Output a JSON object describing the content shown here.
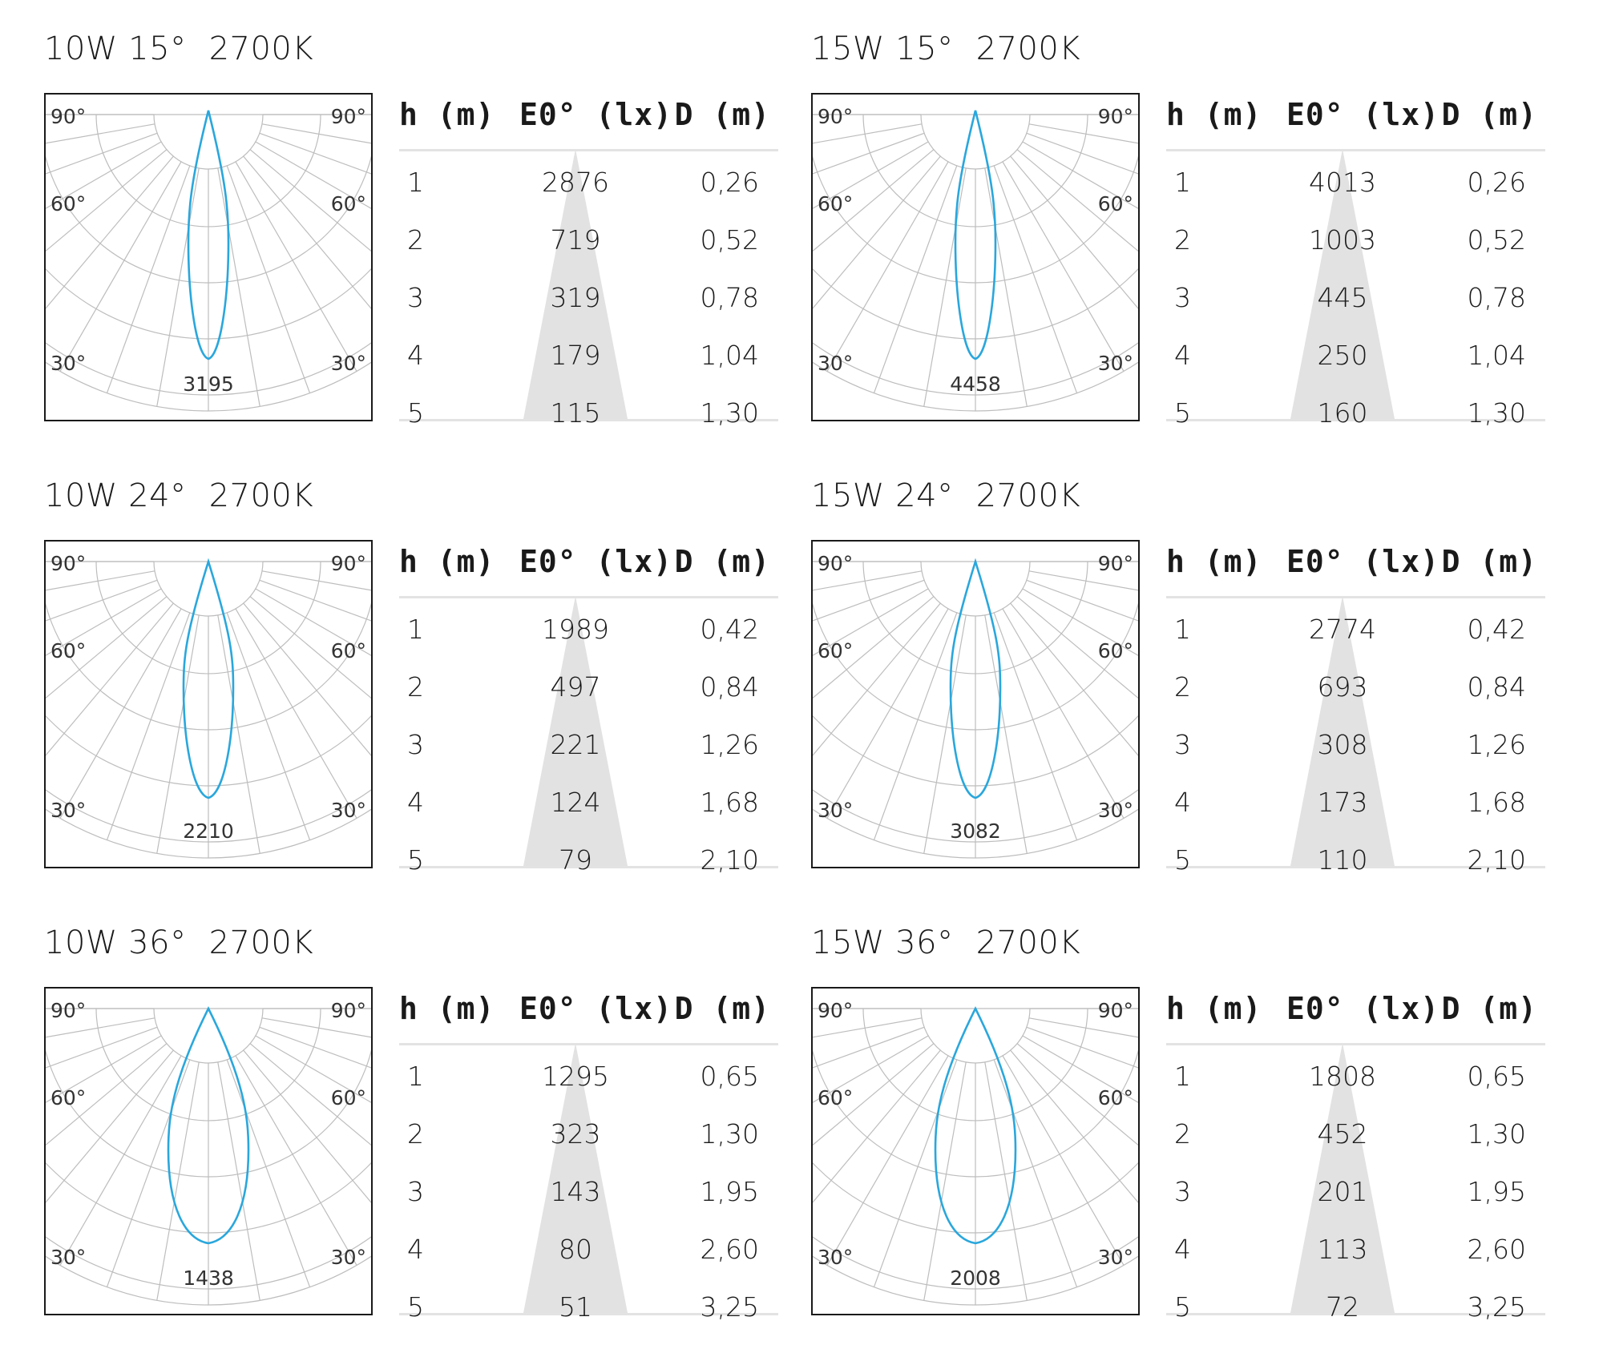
{
  "chart_data": [
    {
      "type": "table",
      "title": "10W 15°",
      "cct": "2700K",
      "peak": "3195",
      "beam": 15,
      "headers": [
        "h (m)",
        "E0° (lx)",
        "D (m)"
      ],
      "rows": [
        [
          "1",
          "2876",
          "0,26"
        ],
        [
          "2",
          "719",
          "0,52"
        ],
        [
          "3",
          "319",
          "0,78"
        ],
        [
          "4",
          "179",
          "1,04"
        ],
        [
          "5",
          "115",
          "1,30"
        ]
      ],
      "angle_labels": [
        "90°",
        "60°",
        "30°"
      ]
    },
    {
      "type": "table",
      "title": "15W 15°",
      "cct": "2700K",
      "peak": "4458",
      "beam": 15,
      "headers": [
        "h (m)",
        "E0° (lx)",
        "D (m)"
      ],
      "rows": [
        [
          "1",
          "4013",
          "0,26"
        ],
        [
          "2",
          "1003",
          "0,52"
        ],
        [
          "3",
          "445",
          "0,78"
        ],
        [
          "4",
          "250",
          "1,04"
        ],
        [
          "5",
          "160",
          "1,30"
        ]
      ],
      "angle_labels": [
        "90°",
        "60°",
        "30°"
      ]
    },
    {
      "type": "table",
      "title": "10W 24°",
      "cct": "2700K",
      "peak": "2210",
      "beam": 24,
      "headers": [
        "h (m)",
        "E0° (lx)",
        "D (m)"
      ],
      "rows": [
        [
          "1",
          "1989",
          "0,42"
        ],
        [
          "2",
          "497",
          "0,84"
        ],
        [
          "3",
          "221",
          "1,26"
        ],
        [
          "4",
          "124",
          "1,68"
        ],
        [
          "5",
          "79",
          "2,10"
        ]
      ],
      "angle_labels": [
        "90°",
        "60°",
        "30°"
      ]
    },
    {
      "type": "table",
      "title": "15W 24°",
      "cct": "2700K",
      "peak": "3082",
      "beam": 24,
      "headers": [
        "h (m)",
        "E0° (lx)",
        "D (m)"
      ],
      "rows": [
        [
          "1",
          "2774",
          "0,42"
        ],
        [
          "2",
          "693",
          "0,84"
        ],
        [
          "3",
          "308",
          "1,26"
        ],
        [
          "4",
          "173",
          "1,68"
        ],
        [
          "5",
          "110",
          "2,10"
        ]
      ],
      "angle_labels": [
        "90°",
        "60°",
        "30°"
      ]
    },
    {
      "type": "table",
      "title": "10W 36°",
      "cct": "2700K",
      "peak": "1438",
      "beam": 36,
      "headers": [
        "h (m)",
        "E0° (lx)",
        "D (m)"
      ],
      "rows": [
        [
          "1",
          "1295",
          "0,65"
        ],
        [
          "2",
          "323",
          "1,30"
        ],
        [
          "3",
          "143",
          "1,95"
        ],
        [
          "4",
          "80",
          "2,60"
        ],
        [
          "5",
          "51",
          "3,25"
        ]
      ],
      "angle_labels": [
        "90°",
        "60°",
        "30°"
      ]
    },
    {
      "type": "table",
      "title": "15W 36°",
      "cct": "2700K",
      "peak": "2008",
      "beam": 36,
      "headers": [
        "h (m)",
        "E0° (lx)",
        "D (m)"
      ],
      "rows": [
        [
          "1",
          "1808",
          "0,65"
        ],
        [
          "2",
          "452",
          "1,30"
        ],
        [
          "3",
          "201",
          "1,95"
        ],
        [
          "4",
          "113",
          "2,60"
        ],
        [
          "5",
          "72",
          "3,25"
        ]
      ],
      "angle_labels": [
        "90°",
        "60°",
        "30°"
      ]
    }
  ],
  "colors": {
    "curve": "#2aa7dc",
    "grid": "#bdbdbd",
    "frame": "#1a1a1a",
    "cone": "#e2e2e2",
    "rule": "#e3e3e3"
  }
}
